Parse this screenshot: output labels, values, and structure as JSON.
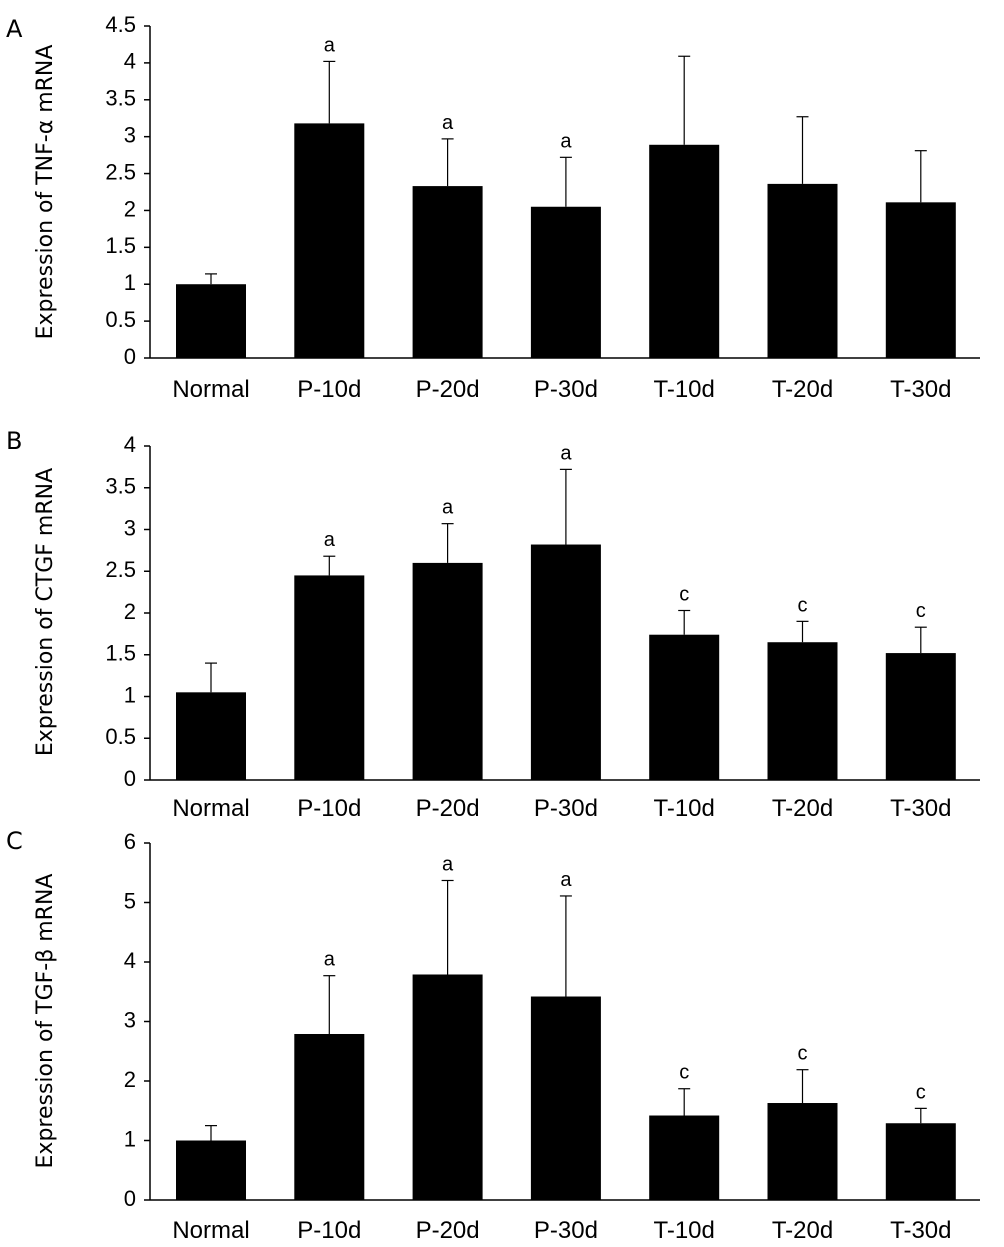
{
  "chart_data": [
    {
      "panel": "A",
      "type": "bar",
      "ylabel": "Expression of TNF-α mRNA",
      "categories": [
        "Normal",
        "P-10d",
        "P-20d",
        "P-30d",
        "T-10d",
        "T-20d",
        "T-30d"
      ],
      "values": [
        1.0,
        3.18,
        2.33,
        2.05,
        2.89,
        2.36,
        2.11
      ],
      "errors": [
        0.14,
        0.84,
        0.64,
        0.67,
        1.2,
        0.91,
        0.7
      ],
      "annotations": [
        "",
        "a",
        "a",
        "a",
        "",
        "",
        ""
      ],
      "ylim": [
        0,
        4.5
      ],
      "yticks": [
        "0",
        "0.5",
        "1",
        "1.5",
        "2",
        "2.5",
        "3",
        "3.5",
        "4",
        "4.5"
      ],
      "grid": false,
      "bar_color": "#000000"
    },
    {
      "panel": "B",
      "type": "bar",
      "ylabel": "Expression of CTGF mRNA",
      "categories": [
        "Normal",
        "P-10d",
        "P-20d",
        "P-30d",
        "T-10d",
        "T-20d",
        "T-30d"
      ],
      "values": [
        1.05,
        2.45,
        2.6,
        2.82,
        1.74,
        1.65,
        1.52
      ],
      "errors": [
        0.35,
        0.23,
        0.47,
        0.9,
        0.29,
        0.25,
        0.31
      ],
      "annotations": [
        "",
        "a",
        "a",
        "a",
        "c",
        "c",
        "c"
      ],
      "ylim": [
        0,
        4
      ],
      "yticks": [
        "0",
        "0.5",
        "1",
        "1.5",
        "2",
        "2.5",
        "3",
        "3.5",
        "4"
      ],
      "grid": false,
      "bar_color": "#000000"
    },
    {
      "panel": "C",
      "type": "bar",
      "ylabel": "Expression of TGF-β mRNA",
      "categories": [
        "Normal",
        "P-10d",
        "P-20d",
        "P-30d",
        "T-10d",
        "T-20d",
        "T-30d"
      ],
      "values": [
        1.0,
        2.79,
        3.79,
        3.42,
        1.42,
        1.63,
        1.29
      ],
      "errors": [
        0.25,
        0.98,
        1.58,
        1.69,
        0.45,
        0.56,
        0.25
      ],
      "annotations": [
        "",
        "a",
        "a",
        "a",
        "c",
        "c",
        "c"
      ],
      "ylim": [
        0,
        6
      ],
      "yticks": [
        "0",
        "1",
        "2",
        "3",
        "4",
        "5",
        "6"
      ],
      "grid": false,
      "bar_color": "#000000"
    }
  ]
}
